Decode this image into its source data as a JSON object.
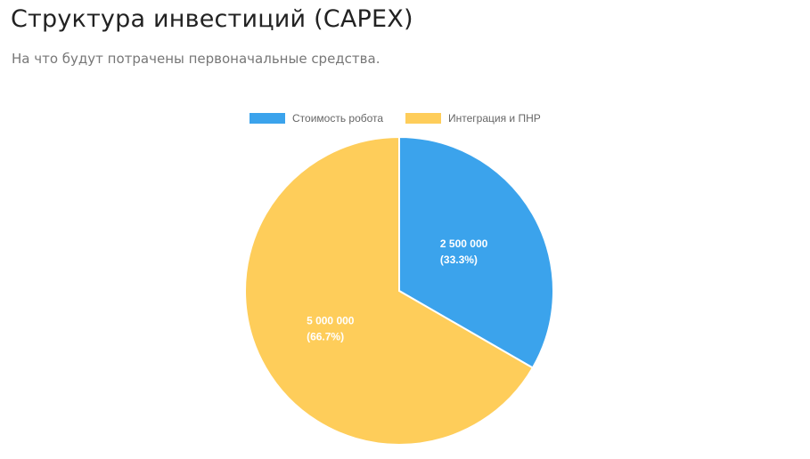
{
  "chart_data": {
    "type": "pie",
    "title": "Структура инвестиций (CAPEX)",
    "subtitle": "На что будут потрачены первоначальные средства.",
    "categories": [
      "Стоимость робота",
      "Интеграция и ПНР"
    ],
    "values": [
      2500000,
      5000000
    ],
    "value_labels": [
      "2 500 000",
      "5 000 000"
    ],
    "percent_labels": [
      "(33.3%)",
      "(66.7%)"
    ],
    "colors": [
      "#3ba3ec",
      "#fecd5a"
    ],
    "legend": "top"
  }
}
